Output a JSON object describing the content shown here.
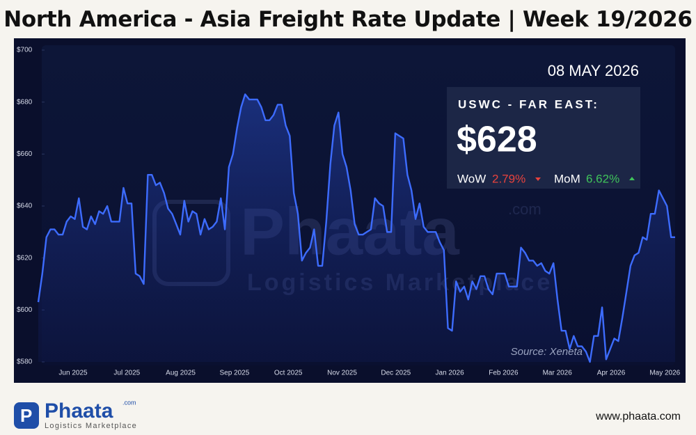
{
  "header": {
    "title": "North America - Asia Freight Rate Update | Week 19/2026"
  },
  "chart_data": {
    "type": "line",
    "date": "08 MAY 2026",
    "panel": {
      "route": "USWC - FAR EAST:",
      "price": "$628",
      "wow_label": "WoW",
      "wow": "2.79%",
      "mom_label": "MoM",
      "mom": "6.62%"
    },
    "source": "Source: Xeneta",
    "watermark": {
      "name": "Phaata",
      "suffix": ".com",
      "tagline": "Logistics Marketplace"
    },
    "xticks": [
      "Jun 2025",
      "Jul 2025",
      "Aug 2025",
      "Sep 2025",
      "Oct 2025",
      "Nov 2025",
      "Dec 2025",
      "Jan 2026",
      "Feb 2026",
      "Mar 2026",
      "Apr 2026",
      "May 2026"
    ],
    "series": [
      {
        "name": "USWC - FAR EAST",
        "color": "#3d6cff",
        "values": [
          603,
          614,
          628,
          631,
          631,
          629,
          629,
          634,
          636,
          635,
          643,
          632,
          631,
          636,
          633,
          638,
          637,
          640,
          634,
          634,
          634,
          647,
          641,
          641,
          614,
          613,
          610,
          652,
          652,
          648,
          649,
          645,
          639,
          637,
          633,
          629,
          642,
          634,
          638,
          637,
          629,
          635,
          631,
          632,
          634,
          643,
          631,
          655,
          660,
          670,
          678,
          683,
          681,
          681,
          681,
          678,
          673,
          673,
          675,
          679,
          679,
          671,
          667,
          645,
          637,
          619,
          622,
          624,
          631,
          617,
          617,
          634,
          656,
          671,
          676,
          660,
          655,
          646,
          633,
          629,
          629,
          630,
          631,
          643,
          641,
          640,
          630,
          630,
          668,
          667,
          666,
          652,
          646,
          635,
          641,
          632,
          630,
          630,
          630,
          626,
          623,
          593,
          592,
          611,
          607,
          609,
          604,
          611,
          608,
          613,
          613,
          608,
          606,
          614,
          614,
          614,
          609,
          609,
          609,
          624,
          622,
          619,
          619,
          617,
          618,
          615,
          614,
          618,
          604,
          592,
          592,
          585,
          590,
          586,
          586,
          584,
          580,
          590,
          590,
          601,
          581,
          585,
          589,
          588,
          597,
          607,
          617,
          621,
          622,
          628,
          627,
          637,
          637,
          646,
          643,
          640,
          628,
          628
        ]
      }
    ],
    "ylim": [
      580,
      700
    ],
    "yticks": [
      {
        "value": 580,
        "label": "$580"
      },
      {
        "value": 600,
        "label": "$600"
      },
      {
        "value": 620,
        "label": "$620"
      },
      {
        "value": 640,
        "label": "$640"
      },
      {
        "value": 660,
        "label": "$660"
      },
      {
        "value": 680,
        "label": "$680"
      },
      {
        "value": 700,
        "label": "$700"
      }
    ]
  },
  "footer": {
    "logo": "Phaata",
    "logo_suffix": ".com",
    "logo_tagline": "Logistics Marketplace",
    "website": "www.phaata.com"
  }
}
